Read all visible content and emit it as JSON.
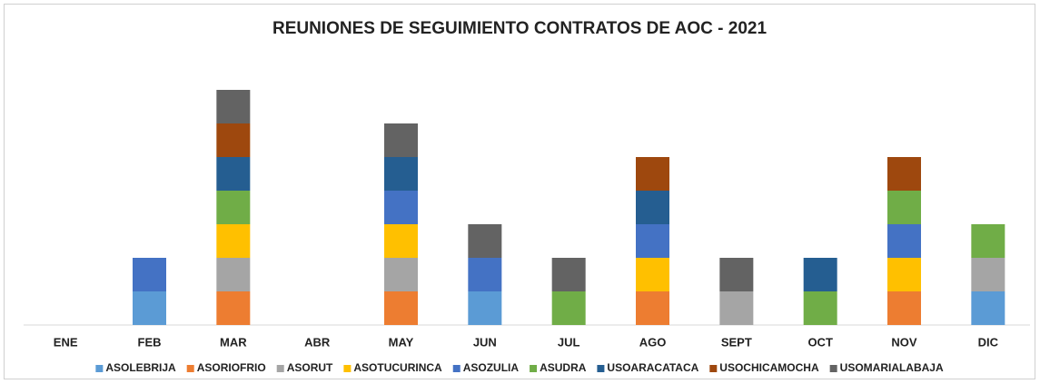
{
  "chart_data": {
    "type": "stacked_bar",
    "title": "REUNIONES DE SEGUIMIENTO CONTRATOS DE AOC - 2021",
    "categories": [
      "ENE",
      "FEB",
      "MAR",
      "ABR",
      "MAY",
      "JUN",
      "JUL",
      "AGO",
      "SEPT",
      "OCT",
      "NOV",
      "DIC"
    ],
    "ylim": [
      0,
      8
    ],
    "legend": "bottom",
    "series": [
      {
        "name": "ASOLEBRIJA",
        "color": "#5b9bd5",
        "values": [
          0,
          1,
          0,
          0,
          0,
          1,
          0,
          0,
          0,
          0,
          0,
          1
        ]
      },
      {
        "name": "ASORIOFRIO",
        "color": "#ed7d31",
        "values": [
          0,
          0,
          1,
          0,
          1,
          0,
          0,
          1,
          0,
          0,
          1,
          0
        ]
      },
      {
        "name": "ASORUT",
        "color": "#a5a5a5",
        "values": [
          0,
          0,
          1,
          0,
          1,
          0,
          0,
          0,
          1,
          0,
          0,
          1
        ]
      },
      {
        "name": "ASOTUCURINCA",
        "color": "#ffc000",
        "values": [
          0,
          0,
          1,
          0,
          1,
          0,
          0,
          1,
          0,
          0,
          1,
          0
        ]
      },
      {
        "name": "ASOZULIA",
        "color": "#4472c4",
        "values": [
          0,
          1,
          0,
          0,
          1,
          1,
          0,
          1,
          0,
          0,
          1,
          0
        ]
      },
      {
        "name": "ASUDRA",
        "color": "#70ad47",
        "values": [
          0,
          0,
          1,
          0,
          0,
          0,
          1,
          0,
          0,
          1,
          1,
          1
        ]
      },
      {
        "name": "USOARACATACA",
        "color": "#255e91",
        "values": [
          0,
          0,
          1,
          0,
          1,
          0,
          0,
          1,
          0,
          1,
          0,
          0
        ]
      },
      {
        "name": "USOCHICAMOCHA",
        "color": "#9e480e",
        "values": [
          0,
          0,
          1,
          0,
          0,
          0,
          0,
          1,
          0,
          0,
          1,
          0
        ]
      },
      {
        "name": "USOMARIALABAJA",
        "color": "#636363",
        "values": [
          0,
          0,
          1,
          0,
          1,
          1,
          1,
          0,
          1,
          0,
          0,
          0
        ]
      }
    ]
  }
}
